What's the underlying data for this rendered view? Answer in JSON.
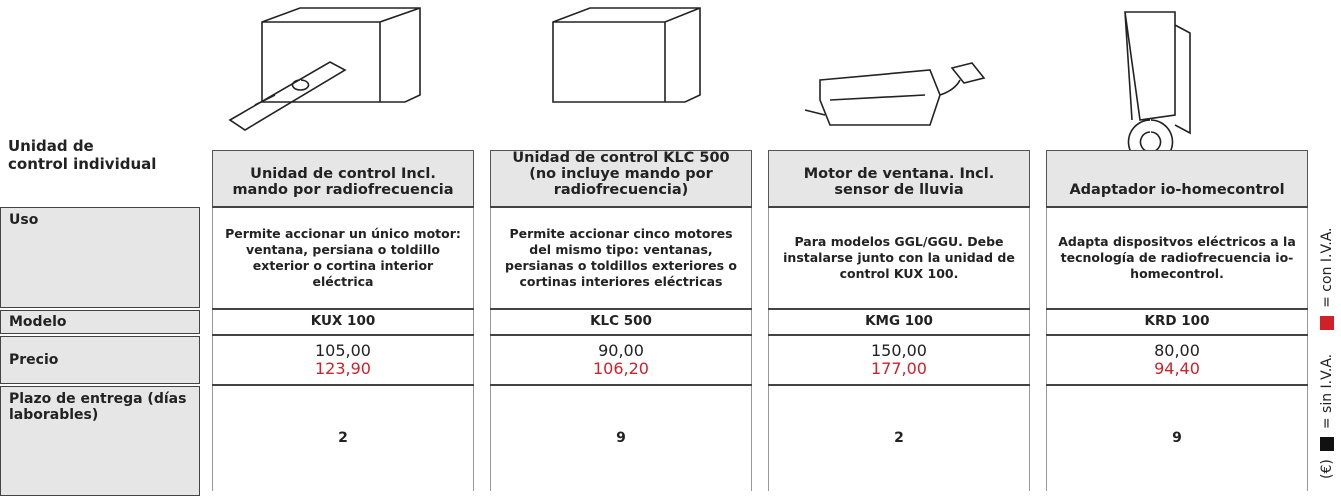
{
  "table": {
    "corner": "Unidad de control individual",
    "row_labels": [
      "Uso",
      "Modelo",
      "Precio",
      "Plazo de entrega (días laborables)"
    ],
    "columns": [
      {
        "title": "Unidad de control Incl. mando por radiofrecuencia",
        "uso": "Permite accionar un único motor: ventana, persiana o toldillo exterior o cortina interior eléctrica",
        "modelo": "KUX 100",
        "precio": "105,00",
        "precio_iva": "123,90",
        "plazo": "2"
      },
      {
        "title": "Unidad de control KLC 500 (no incluye mando por radiofrecuencia)",
        "uso": "Permite accionar cinco motores del mismo tipo: ventanas, persianas o toldillos exteriores o cortinas interiores eléctricas",
        "modelo": "KLC 500",
        "precio": "90,00",
        "precio_iva": "106,20",
        "plazo": "9"
      },
      {
        "title": "Motor de ventana. Incl. sensor de lluvia",
        "uso": "Para modelos GGL/GGU. Debe instalarse junto con la unidad de control KUX 100.",
        "modelo": "KMG 100",
        "precio": "150,00",
        "precio_iva": "177,00",
        "plazo": "2"
      },
      {
        "title": "Adaptador io-homecontrol",
        "uso": "Adapta dispositvos eléctricos a la tecnología de radiofrecuencia io-homecontrol.",
        "modelo": "KRD 100",
        "precio": "80,00",
        "precio_iva": "94,40",
        "plazo": "9"
      }
    ]
  },
  "legend": {
    "currency": "(€)",
    "net": "= sin I.V.A.",
    "gross": "= con I.V.A."
  }
}
